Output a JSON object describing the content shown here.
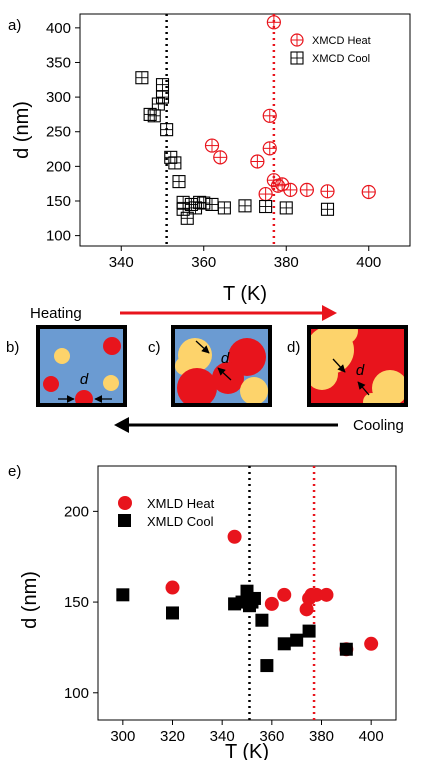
{
  "chart_data": [
    {
      "panel_label": "a)",
      "type": "scatter",
      "xlabel": "T (K)",
      "ylabel": "d (nm)",
      "xlim": [
        330,
        410
      ],
      "ylim": [
        85,
        420
      ],
      "xticks": [
        340,
        360,
        380,
        400
      ],
      "yticks": [
        100,
        150,
        200,
        250,
        300,
        350,
        400
      ],
      "vlines": [
        {
          "x": 351,
          "color": "#000000",
          "style": "dotted"
        },
        {
          "x": 377,
          "color": "#e8141c",
          "style": "dotted"
        }
      ],
      "legend_position": "top-right",
      "series": [
        {
          "name": "XMCD Heat",
          "marker": "open-circle-cross",
          "color": "#e8141c",
          "x": [
            362,
            364,
            373,
            375,
            376,
            376,
            377,
            377,
            378,
            379,
            381,
            385,
            390,
            400
          ],
          "y": [
            230,
            213,
            207,
            160,
            226,
            273,
            408,
            180,
            172,
            174,
            166,
            166,
            164,
            163
          ]
        },
        {
          "name": "XMCD Cool",
          "marker": "open-square-cross",
          "color": "#000000",
          "x": [
            345,
            347,
            348,
            349,
            350,
            350,
            351,
            352,
            353,
            354,
            355,
            355,
            356,
            357,
            358,
            359,
            360,
            362,
            365,
            370,
            375,
            380,
            390
          ],
          "y": [
            328,
            275,
            273,
            290,
            318,
            300,
            253,
            213,
            205,
            178,
            148,
            138,
            125,
            145,
            140,
            148,
            147,
            145,
            140,
            143,
            142,
            140,
            138
          ]
        }
      ]
    },
    {
      "panel_label": "e)",
      "type": "scatter",
      "xlabel": "T (K)",
      "ylabel": "d (nm)",
      "xlim": [
        290,
        410
      ],
      "ylim": [
        85,
        225
      ],
      "xticks": [
        300,
        320,
        340,
        360,
        380,
        400
      ],
      "yticks": [
        100,
        150,
        200
      ],
      "vlines": [
        {
          "x": 351,
          "color": "#000000",
          "style": "dotted"
        },
        {
          "x": 377,
          "color": "#e8141c",
          "style": "dotted"
        }
      ],
      "legend_position": "top-left",
      "series": [
        {
          "name": "XMLD Heat",
          "marker": "filled-circle",
          "color": "#e8141c",
          "x": [
            320,
            345,
            360,
            365,
            374,
            375,
            376,
            378,
            382,
            390,
            400
          ],
          "y": [
            158,
            186,
            149,
            154,
            146,
            152,
            154,
            154,
            154,
            124,
            127
          ]
        },
        {
          "name": "XMLD Cool",
          "marker": "filled-square",
          "color": "#000000",
          "x": [
            300,
            320,
            345,
            348,
            350,
            351,
            352,
            353,
            356,
            358,
            365,
            370,
            375,
            390
          ],
          "y": [
            154,
            144,
            149,
            150,
            156,
            148,
            150,
            152,
            140,
            115,
            127,
            129,
            134,
            124
          ]
        }
      ]
    }
  ],
  "schematic": {
    "heating_label": "Heating",
    "cooling_label": "Cooling",
    "panels": [
      {
        "label": "b)",
        "d_label": "d"
      },
      {
        "label": "c)",
        "d_label": "d"
      },
      {
        "label": "d)",
        "d_label": "d"
      }
    ],
    "colors": {
      "background_blue": "#6b9bd2",
      "phase_yellow": "#fdd36b",
      "phase_red": "#e8141c",
      "arrow_red": "#e8141c",
      "arrow_black": "#000000"
    }
  }
}
